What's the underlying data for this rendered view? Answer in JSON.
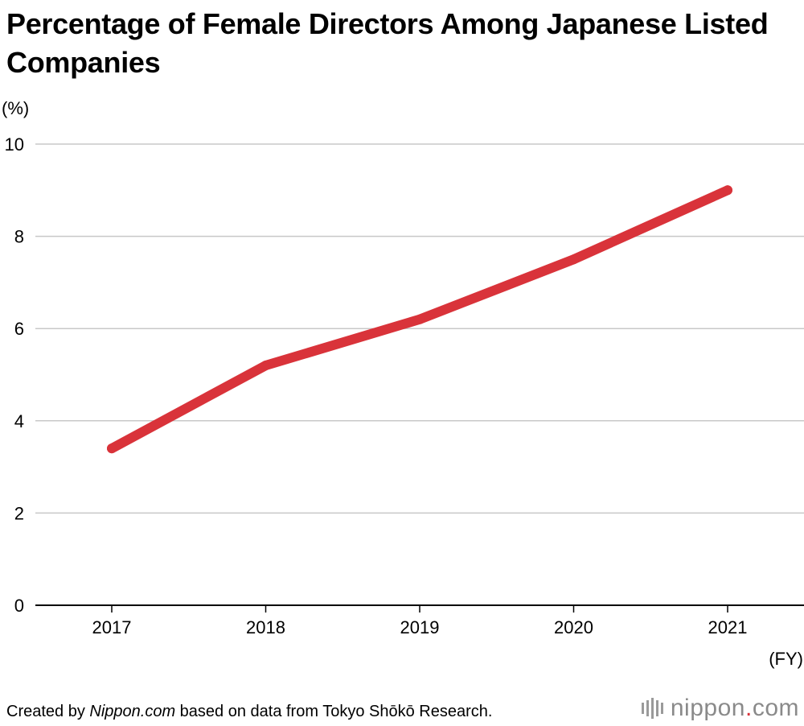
{
  "chart_data": {
    "type": "line",
    "title": "Percentage of Female Directors Among Japanese Listed Companies",
    "ylabel_unit": "(%)",
    "xlabel_unit": "(FY)",
    "ylim": [
      0,
      10
    ],
    "yticks": [
      0,
      2,
      4,
      6,
      8,
      10
    ],
    "categories": [
      "2017",
      "2018",
      "2019",
      "2020",
      "2021"
    ],
    "series": [
      {
        "values": [
          3.4,
          5.2,
          6.2,
          7.5,
          9.0
        ],
        "color": "#d9333a"
      }
    ],
    "grid": true,
    "legend": "none"
  },
  "footer": {
    "prefix": "Created by ",
    "emphasis": "Nippon.com",
    "suffix": " based on data from Tokyo Shōkō Research."
  },
  "brand": {
    "word": "nippon",
    "dot": ".",
    "tld": "com",
    "accent_color": "#d9333a"
  }
}
